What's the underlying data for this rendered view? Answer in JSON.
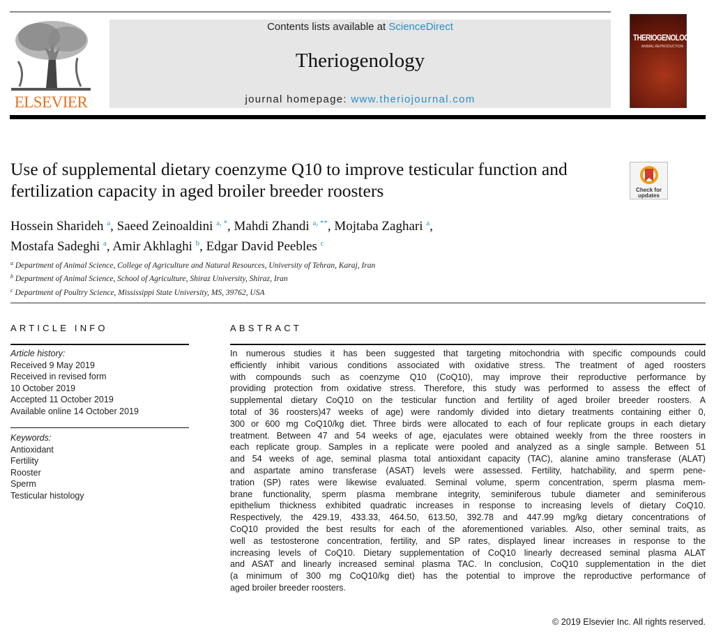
{
  "header": {
    "contents_prefix": "Contents lists available at ",
    "contents_link": "ScienceDirect",
    "journal_title": "Theriogenology",
    "homepage_prefix": "journal homepage: ",
    "homepage_link": "www.theriojournal.com",
    "publisher_logo": "ELSEVIER",
    "cover_title": "THERIOGENOLOGY",
    "cover_subtitle": "ANIMAL REPRODUCTION",
    "badge": "Check for updates",
    "colors": {
      "link": "#2a8fc4",
      "elsevier": "#e9711c"
    }
  },
  "article": {
    "title": "Use of supplemental dietary coenzyme Q10 to improve testicular function and fertilization capacity in aged broiler breeder roosters",
    "authors": [
      {
        "name": "Hossein Sharideh",
        "sup": "a"
      },
      {
        "name": "Saeed Zeinoaldini",
        "sup": "a, *"
      },
      {
        "name": "Mahdi Zhandi",
        "sup": "a, **"
      },
      {
        "name": "Mojtaba Zaghari",
        "sup": "a"
      },
      {
        "name": "Mostafa Sadeghi",
        "sup": "a"
      },
      {
        "name": "Amir Akhlaghi",
        "sup": "b"
      },
      {
        "name": "Edgar David Peebles",
        "sup": "c"
      }
    ],
    "affiliations": [
      {
        "sup": "a",
        "text": "Department of Animal Science, College of Agriculture and Natural Resources, University of Tehran, Karaj, Iran"
      },
      {
        "sup": "b",
        "text": "Department of Animal Science, School of Agriculture, Shiraz University, Shiraz, Iran"
      },
      {
        "sup": "c",
        "text": "Department of Poultry Science, Mississippi State University, MS, 39762, USA"
      }
    ]
  },
  "article_info": {
    "heading": "ARTICLE INFO",
    "history_label": "Article history:",
    "history": [
      "Received 9 May 2019",
      "Received in revised form",
      "10 October 2019",
      "Accepted 11 October 2019",
      "Available online 14 October 2019"
    ],
    "keywords_label": "Keywords:",
    "keywords": [
      "Antioxidant",
      "Fertility",
      "Rooster",
      "Sperm",
      "Testicular histology"
    ]
  },
  "abstract": {
    "heading": "ABSTRACT",
    "lines": [
      "In numerous studies it has been suggested that targeting mitochondria with specific compounds could",
      "efficiently inhibit various conditions associated with oxidative stress. The treatment of aged roosters",
      "with compounds such as coenzyme Q10 (CoQ10), may improve their reproductive performance by",
      "providing protection from oxidative stress. Therefore, this study was performed to assess the effect of",
      "supplemental dietary CoQ10 on the testicular function and fertility of aged broiler breeder roosters. A",
      "total of 36 roosters)47 weeks of age) were randomly divided into dietary treatments containing either 0,",
      "300 or 600 mg CoQ10/kg diet. Three birds were allocated to each of four replicate groups in each dietary",
      "treatment. Between 47 and 54 weeks of age, ejaculates were obtained weekly from the three roosters in",
      "each replicate group. Samples in a replicate were pooled and analyzed as a single sample. Between 51",
      "and 54 weeks of age, seminal plasma total antioxidant capacity (TAC), alanine amino transferase (ALAT)",
      "and aspartate amino transferase (ASAT) levels were assessed. Fertility, hatchability, and sperm pene-",
      "tration (SP) rates were likewise evaluated. Seminal volume, sperm concentration, sperm plasma mem-",
      "brane functionality, sperm plasma membrane integrity, seminiferous tubule diameter and seminiferous",
      "epithelium thickness exhibited quadratic increases in response to increasing levels of dietary CoQ10.",
      "Respectively, the 429.19, 433.33, 464.50, 613.50, 392.78 and 447.99 mg/kg dietary concentrations of",
      "CoQ10 provided the best results for each of the aforementioned variables. Also, other seminal traits, as",
      "well as testosterone concentration, fertility, and SP rates, displayed linear increases in response to the",
      "increasing levels of CoQ10. Dietary supplementation of CoQ10 linearly decreased seminal plasma ALAT",
      "and ASAT and linearly increased seminal plasma TAC. In conclusion, CoQ10 supplementation in the diet",
      "(a minimum of 300 mg CoQ10/kg diet) has the potential to improve the reproductive performance of",
      "aged broiler breeder roosters."
    ],
    "copyright": "© 2019 Elsevier Inc. All rights reserved."
  }
}
